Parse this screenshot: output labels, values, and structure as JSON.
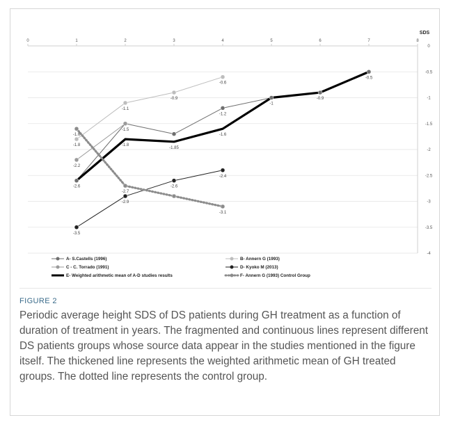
{
  "figure": {
    "label": "FIGURE 2",
    "caption": "Periodic average height SDS of DS patients during GH treatment as a function of duration of treatment in years. The fragmented and continuous lines represent different DS patients groups whose source data appear in the studies mentioned in the figure itself. The thickened line represents the weighted arithmetic mean of GH treated groups. The dotted line represents the control group."
  },
  "chart_data": {
    "type": "line",
    "title": "",
    "ylabel": "SDS",
    "xlim": [
      0,
      8
    ],
    "ylim": [
      -4,
      0
    ],
    "x_ticks": [
      0,
      1,
      2,
      3,
      4,
      5,
      6,
      7,
      8
    ],
    "y_ticks": [
      0,
      -0.5,
      -1,
      -1.5,
      -2,
      -2.5,
      -3,
      -3.5,
      -4
    ],
    "x_axis_position": "top",
    "y_axis_position": "right",
    "grid": true,
    "legend_position": "bottom",
    "series": [
      {
        "name": "A- S.Castells (1996)",
        "color": "#6f6f6f",
        "style": "thin-solid",
        "points": [
          [
            1,
            -2.6
          ],
          [
            2,
            -1.5
          ],
          [
            3,
            -1.7
          ],
          [
            4,
            -1.2
          ],
          [
            5,
            -1.0
          ],
          [
            6,
            -0.9
          ],
          [
            7,
            -0.5
          ]
        ],
        "labels": [
          "-2.6",
          "-1.5",
          "",
          "-1.2",
          "-1",
          "-0.9",
          "-0.5"
        ]
      },
      {
        "name": "B- Annern G (1993)",
        "color": "#bdbdbd",
        "style": "thin-solid",
        "points": [
          [
            1,
            -1.8
          ],
          [
            2,
            -1.1
          ],
          [
            3,
            -0.9
          ],
          [
            4,
            -0.6
          ]
        ],
        "labels": [
          "-1.8",
          "-1.1",
          "-0.9",
          "-0.6"
        ]
      },
      {
        "name": "C - C. Torrado (1991)",
        "color": "#9a9a9a",
        "style": "thin-solid",
        "points": [
          [
            1,
            -2.2
          ],
          [
            2,
            -1.5
          ]
        ],
        "labels": [
          "-2.2",
          ""
        ]
      },
      {
        "name": "D- Kyoko M (2013)",
        "color": "#222222",
        "style": "thin-solid",
        "points": [
          [
            1,
            -3.5
          ],
          [
            2,
            -2.9
          ],
          [
            3,
            -2.6
          ],
          [
            4,
            -2.4
          ]
        ],
        "labels": [
          "-3.5",
          "-2.9",
          "-2.6",
          "-2.4"
        ]
      },
      {
        "name": "E- Weighted arithmetic mean of A-D studies results",
        "color": "#000000",
        "style": "thick-solid",
        "points": [
          [
            1,
            -2.6
          ],
          [
            2,
            -1.8
          ],
          [
            3,
            -1.85
          ],
          [
            4,
            -1.6
          ],
          [
            5,
            -1.0
          ],
          [
            6,
            -0.9
          ],
          [
            7,
            -0.5
          ]
        ],
        "labels": [
          "",
          "-1.8",
          "-1.85",
          "-1.6",
          "",
          "",
          ""
        ]
      },
      {
        "name": "F- Annern G (1993) Control Group",
        "color": "#8c8c8c",
        "style": "dotted",
        "points": [
          [
            1,
            -1.6
          ],
          [
            2,
            -2.7
          ],
          [
            3,
            -2.9
          ],
          [
            4,
            -3.1
          ]
        ],
        "labels": [
          "-1.6",
          "-2.7",
          "",
          "-3.1"
        ]
      }
    ],
    "legend": [
      {
        "name": "A- S.Castells (1996)",
        "marker": "dot-line"
      },
      {
        "name": "B- Annern G (1993)",
        "marker": "dot-line"
      },
      {
        "name": "C - C. Torrado (1991)",
        "marker": "dot-line"
      },
      {
        "name": "D- Kyoko M (2013)",
        "marker": "dot-line"
      },
      {
        "name": "E- Weighted arithmetic mean of A-D studies results",
        "marker": "thick-line"
      },
      {
        "name": "F- Annern G (1993) Control Group",
        "marker": "dotted-line"
      }
    ]
  }
}
